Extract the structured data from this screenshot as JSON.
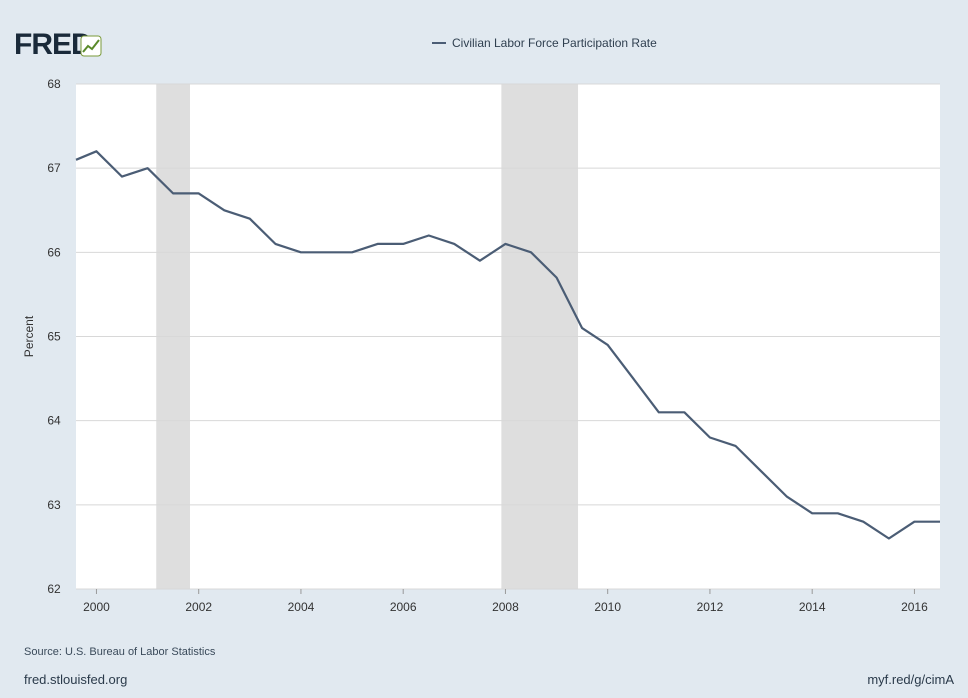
{
  "branding": {
    "logo_text": "FRED"
  },
  "source_text": "Source: U.S. Bureau of Labor Statistics",
  "footer": {
    "left": "fred.stlouisfed.org",
    "right": "myf.red/g/cimA"
  },
  "colors": {
    "line": "#4b5d75",
    "recession": "#dedede",
    "background": "#e1e9f0",
    "plot": "#ffffff",
    "grid": "#d8d8d8"
  },
  "chart_data": {
    "type": "line",
    "title": "",
    "xlabel": "",
    "ylabel": "Percent",
    "xlim": [
      1999.6,
      2016.5
    ],
    "ylim": [
      62,
      68
    ],
    "x_ticks": [
      2000,
      2002,
      2004,
      2006,
      2008,
      2010,
      2012,
      2014,
      2016
    ],
    "x_tick_labels": [
      "2000",
      "2002",
      "2004",
      "2006",
      "2008",
      "2010",
      "2012",
      "2014",
      "2016"
    ],
    "y_ticks": [
      62,
      63,
      64,
      65,
      66,
      67,
      68
    ],
    "y_tick_labels": [
      "62",
      "63",
      "64",
      "65",
      "66",
      "67",
      "68"
    ],
    "grid": true,
    "legend_position": "top-center",
    "recession_bands": [
      [
        2001.17,
        2001.83
      ],
      [
        2007.92,
        2009.42
      ]
    ],
    "series": [
      {
        "name": "Civilian Labor Force Participation Rate",
        "x": [
          1999.6,
          2000.0,
          2000.5,
          2001.0,
          2001.5,
          2002.0,
          2002.5,
          2003.0,
          2003.5,
          2004.0,
          2004.5,
          2005.0,
          2005.5,
          2006.0,
          2006.5,
          2007.0,
          2007.5,
          2008.0,
          2008.5,
          2009.0,
          2009.5,
          2010.0,
          2010.5,
          2011.0,
          2011.5,
          2012.0,
          2012.5,
          2013.0,
          2013.5,
          2014.0,
          2014.5,
          2015.0,
          2015.5,
          2016.0,
          2016.5
        ],
        "y": [
          67.1,
          67.2,
          66.9,
          67.0,
          66.7,
          66.7,
          66.5,
          66.4,
          66.1,
          66.0,
          66.0,
          66.0,
          66.1,
          66.1,
          66.2,
          66.1,
          65.9,
          66.1,
          66.0,
          65.7,
          65.1,
          64.9,
          64.5,
          64.1,
          64.1,
          63.8,
          63.7,
          63.4,
          63.1,
          62.9,
          62.9,
          62.8,
          62.6,
          62.8,
          62.8
        ]
      }
    ]
  }
}
